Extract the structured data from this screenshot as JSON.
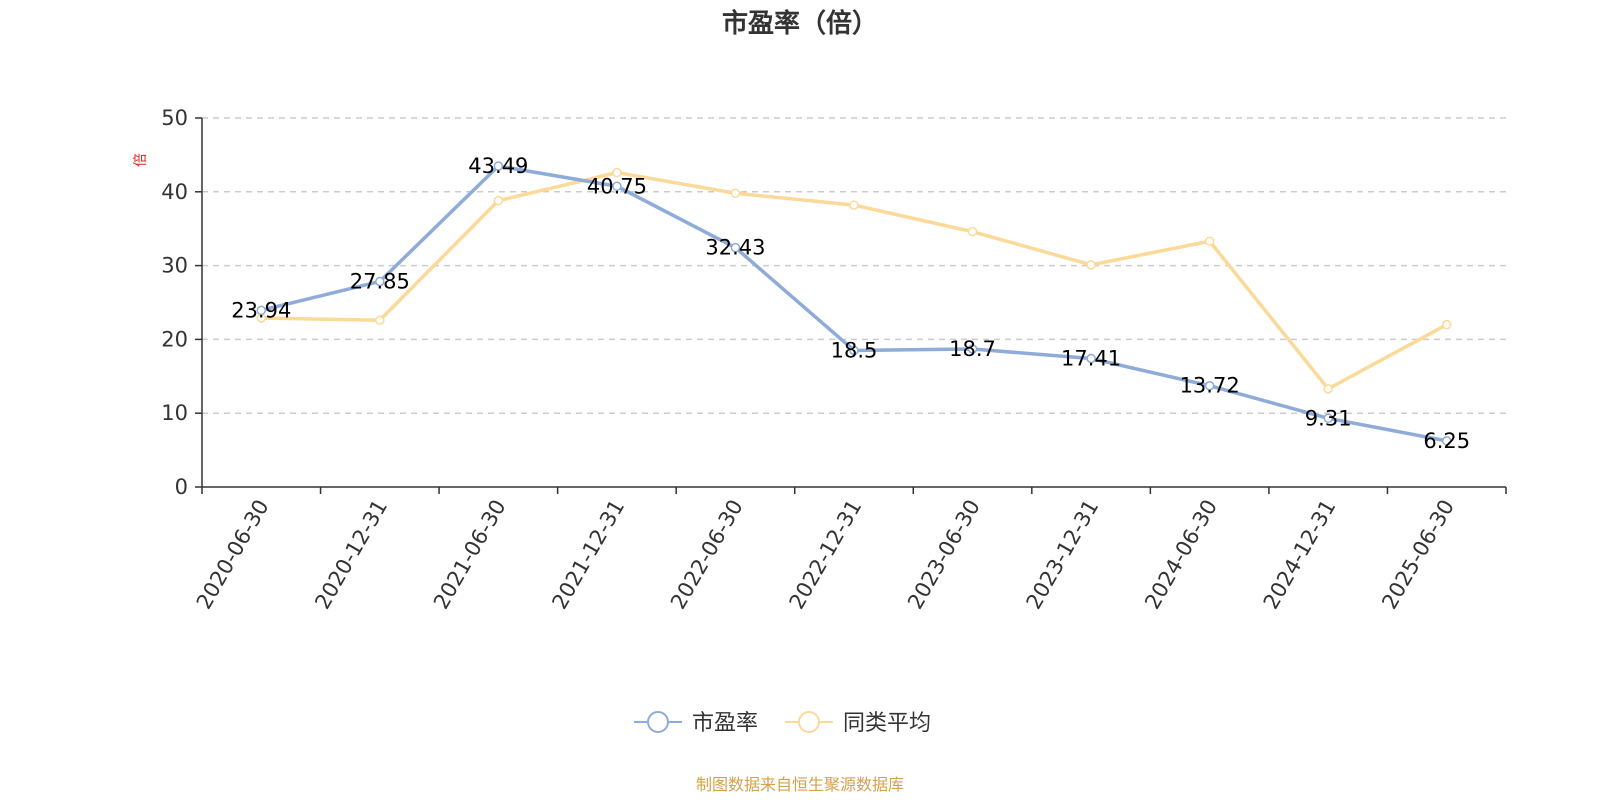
{
  "chart_data": {
    "type": "line",
    "title": "市盈率（倍）",
    "ylabel": "倍",
    "xlabel": "",
    "categories": [
      "2020-06-30",
      "2020-12-31",
      "2021-06-30",
      "2021-12-31",
      "2022-06-30",
      "2022-12-31",
      "2023-06-30",
      "2023-12-31",
      "2024-06-30",
      "2024-12-31",
      "2025-06-30"
    ],
    "ylim": [
      0,
      50
    ],
    "yticks": [
      0,
      10,
      20,
      30,
      40,
      50
    ],
    "grid": true,
    "legend_position": "bottom-center",
    "series": [
      {
        "name": "市盈率",
        "color": "#8EABD9",
        "values": [
          23.94,
          27.85,
          43.49,
          40.75,
          32.43,
          18.5,
          18.7,
          17.41,
          13.72,
          9.31,
          6.25
        ],
        "labels": [
          "23.94",
          "27.85",
          "43.49",
          "40.75",
          "32.43",
          "18.5",
          "18.7",
          "17.41",
          "13.72",
          "9.31",
          "6.25"
        ]
      },
      {
        "name": "同类平均",
        "color": "#FBD998",
        "values": [
          22.9,
          22.6,
          38.8,
          42.6,
          39.8,
          38.2,
          34.6,
          30.1,
          33.3,
          13.3,
          22.0
        ]
      }
    ]
  },
  "unit_color": "#E02020",
  "source_text": "制图数据来自恒生聚源数据库",
  "source_color": "#D4A24C"
}
